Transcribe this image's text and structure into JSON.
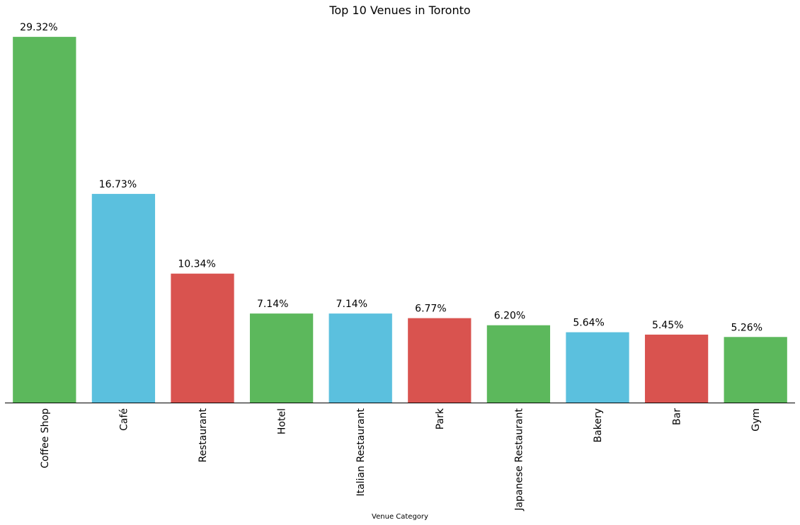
{
  "chart_data": {
    "type": "bar",
    "title": "Top 10 Venues in Toronto",
    "xlabel": "Venue Category",
    "ylabel": "",
    "categories": [
      "Coffee Shop",
      "Café",
      "Restaurant",
      "Hotel",
      "Italian Restaurant",
      "Park",
      "Japanese Restaurant",
      "Bakery",
      "Bar",
      "Gym"
    ],
    "values": [
      29.32,
      16.73,
      10.34,
      7.14,
      7.14,
      6.77,
      6.2,
      5.64,
      5.45,
      5.26
    ],
    "value_labels": [
      "29.32%",
      "16.73%",
      "10.34%",
      "7.14%",
      "7.14%",
      "6.77%",
      "6.20%",
      "5.64%",
      "5.45%",
      "5.26%"
    ],
    "bar_colors": [
      "#5cb85c",
      "#5bc0de",
      "#d9534f",
      "#5cb85c",
      "#5bc0de",
      "#d9534f",
      "#5cb85c",
      "#5bc0de",
      "#d9534f",
      "#5cb85c"
    ],
    "ylim": [
      0,
      30.8
    ],
    "grid": false,
    "legend": "none",
    "y_axis_visible": false
  }
}
